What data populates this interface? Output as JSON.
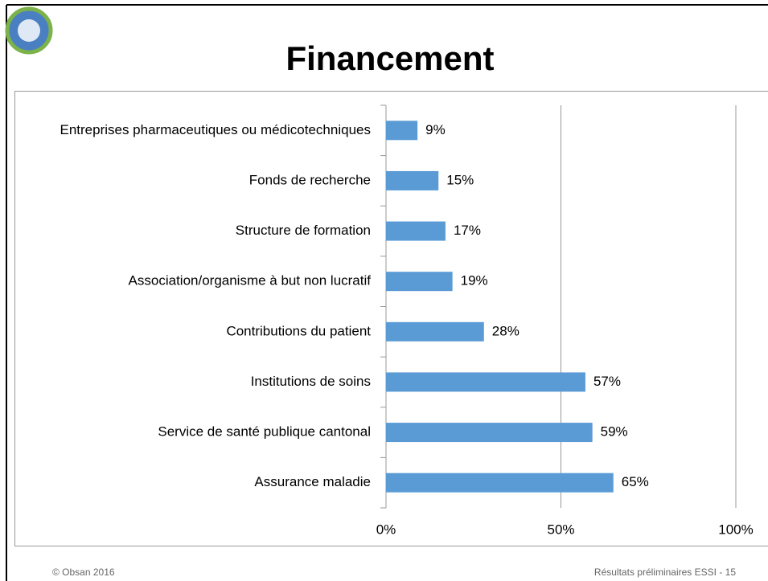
{
  "chart_data": {
    "type": "bar",
    "orientation": "horizontal",
    "title": "Financement",
    "categories": [
      "Entreprises pharmaceutiques ou médicotechniques",
      "Fonds de recherche",
      "Structure de formation",
      "Association/organisme à but non lucratif",
      "Contributions du patient",
      "Institutions de soins",
      "Service de santé publique cantonal",
      "Assurance maladie"
    ],
    "values": [
      9,
      15,
      17,
      19,
      28,
      57,
      59,
      65
    ],
    "value_labels": [
      "9%",
      "15%",
      "17%",
      "19%",
      "28%",
      "57%",
      "59%",
      "65%"
    ],
    "color": "#5b9bd5",
    "xlim": [
      0,
      100
    ],
    "xticks": [
      {
        "value": 0,
        "label": "0%"
      },
      {
        "value": 50,
        "label": "50%"
      },
      {
        "value": 100,
        "label": "100%"
      }
    ],
    "grid": true
  },
  "footer": {
    "left": "© Obsan 2016",
    "right": "Résultats préliminaires ESSI - 15"
  }
}
